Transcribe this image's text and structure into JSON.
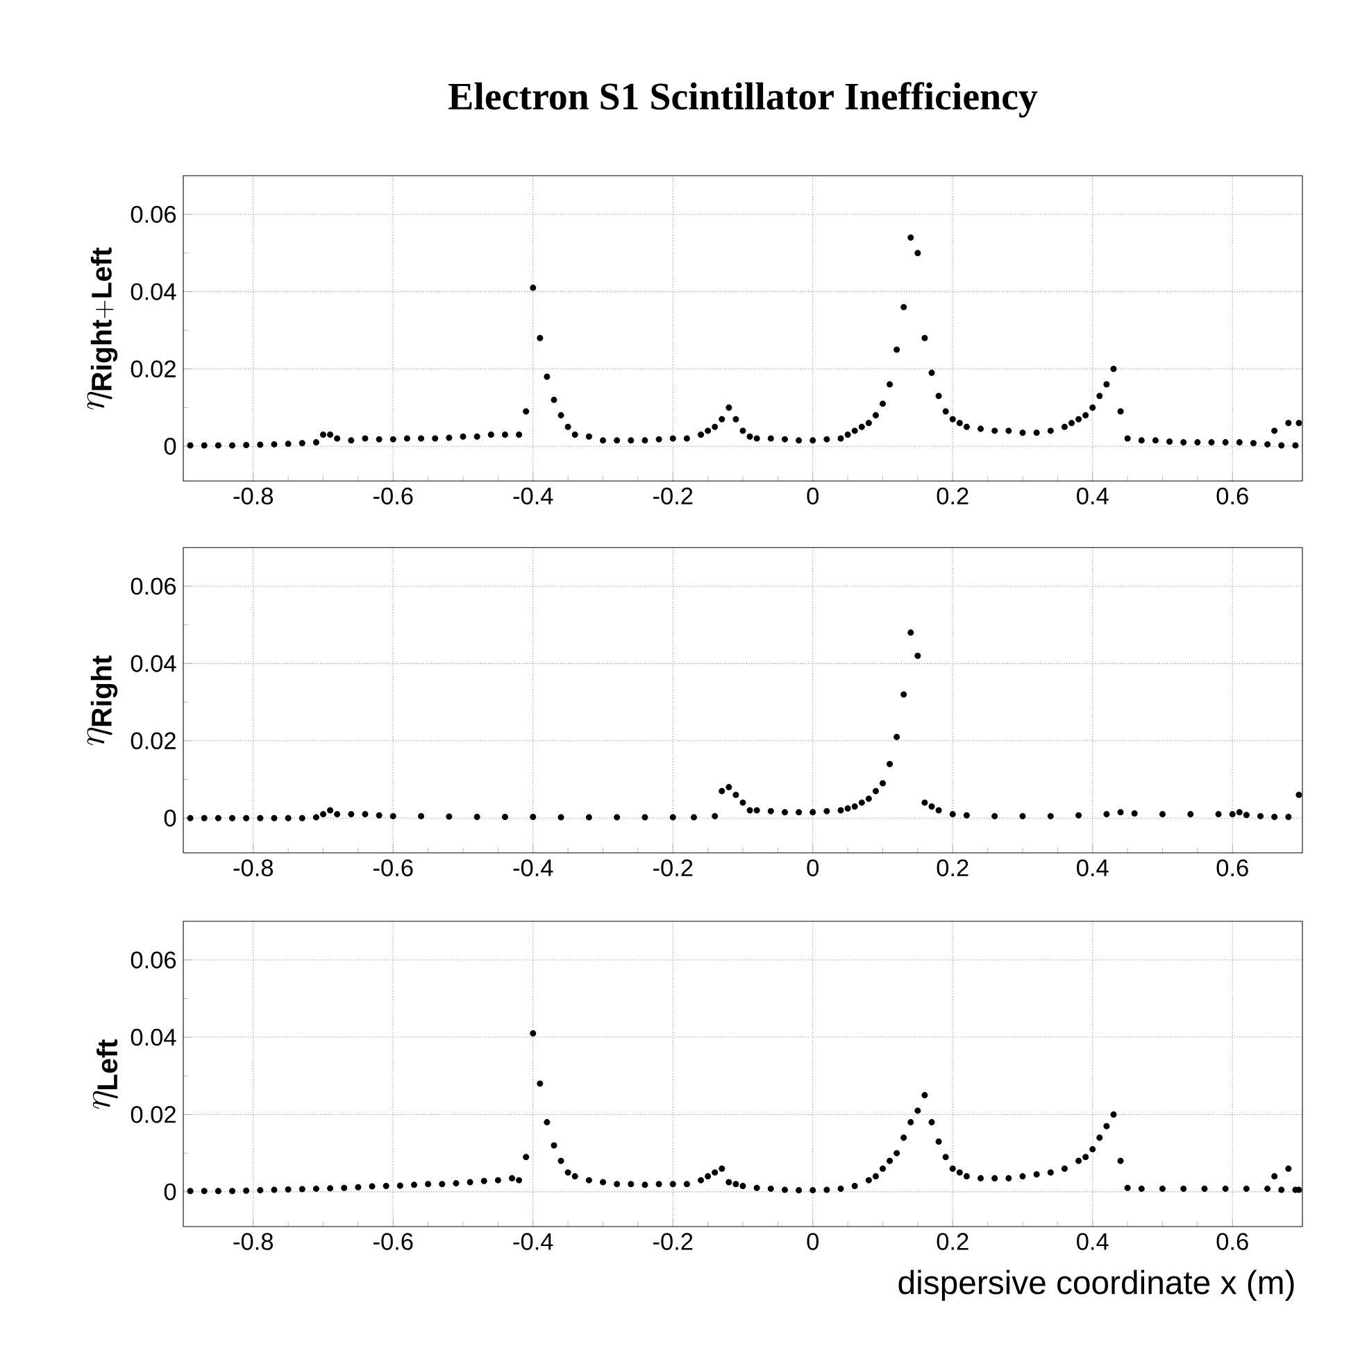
{
  "chart_data": [
    {
      "type": "scatter",
      "title": "Electron S1 Scintillator Inefficiency",
      "ylabel": "\\eta_{\\mathbf{Right+Left}}",
      "color": "#000000",
      "marker": "circle",
      "grid": true,
      "x": [
        -0.89,
        -0.87,
        -0.85,
        -0.83,
        -0.81,
        -0.79,
        -0.77,
        -0.75,
        -0.73,
        -0.71,
        -0.7,
        -0.69,
        -0.68,
        -0.66,
        -0.64,
        -0.62,
        -0.6,
        -0.58,
        -0.56,
        -0.54,
        -0.52,
        -0.5,
        -0.48,
        -0.46,
        -0.44,
        -0.42,
        -0.41,
        -0.4,
        -0.39,
        -0.38,
        -0.37,
        -0.36,
        -0.35,
        -0.34,
        -0.32,
        -0.3,
        -0.28,
        -0.26,
        -0.24,
        -0.22,
        -0.2,
        -0.18,
        -0.16,
        -0.15,
        -0.14,
        -0.13,
        -0.12,
        -0.11,
        -0.1,
        -0.09,
        -0.08,
        -0.06,
        -0.04,
        -0.02,
        0,
        0.02,
        0.04,
        0.05,
        0.06,
        0.07,
        0.08,
        0.09,
        0.1,
        0.11,
        0.12,
        0.13,
        0.14,
        0.15,
        0.16,
        0.17,
        0.18,
        0.19,
        0.2,
        0.21,
        0.22,
        0.24,
        0.26,
        0.28,
        0.3,
        0.32,
        0.34,
        0.36,
        0.37,
        0.38,
        0.39,
        0.4,
        0.41,
        0.42,
        0.43,
        0.44,
        0.45,
        0.47,
        0.49,
        0.51,
        0.53,
        0.55,
        0.57,
        0.59,
        0.61,
        0.63,
        0.65,
        0.66,
        0.67,
        0.68,
        0.69,
        0.695
      ],
      "values": [
        0.0002,
        0.0002,
        0.0002,
        0.0002,
        0.0003,
        0.0004,
        0.0005,
        0.0006,
        0.0008,
        0.001,
        0.003,
        0.003,
        0.002,
        0.0015,
        0.002,
        0.0018,
        0.0018,
        0.002,
        0.002,
        0.002,
        0.0022,
        0.0025,
        0.0025,
        0.003,
        0.003,
        0.003,
        0.009,
        0.041,
        0.028,
        0.018,
        0.012,
        0.008,
        0.005,
        0.003,
        0.0025,
        0.0015,
        0.0015,
        0.0015,
        0.0015,
        0.0018,
        0.002,
        0.002,
        0.003,
        0.004,
        0.005,
        0.007,
        0.01,
        0.007,
        0.004,
        0.0025,
        0.002,
        0.002,
        0.0018,
        0.0015,
        0.0015,
        0.0018,
        0.002,
        0.003,
        0.004,
        0.005,
        0.006,
        0.008,
        0.011,
        0.016,
        0.025,
        0.036,
        0.054,
        0.05,
        0.028,
        0.019,
        0.013,
        0.009,
        0.007,
        0.006,
        0.005,
        0.0045,
        0.004,
        0.004,
        0.0035,
        0.0035,
        0.004,
        0.005,
        0.006,
        0.007,
        0.008,
        0.01,
        0.013,
        0.016,
        0.02,
        0.009,
        0.002,
        0.0015,
        0.0015,
        0.0012,
        0.001,
        0.001,
        0.001,
        0.001,
        0.001,
        0.0008,
        0.0005,
        0.004,
        0.0002,
        0.006,
        0.0002,
        0.006
      ],
      "xlim": [
        -0.9,
        0.7
      ],
      "ylim": [
        -0.009,
        0.07
      ],
      "xticks": [
        -0.8,
        -0.6,
        -0.4,
        -0.2,
        0,
        0.2,
        0.4,
        0.6
      ],
      "yticks": [
        0,
        0.02,
        0.04,
        0.06
      ]
    },
    {
      "type": "scatter",
      "ylabel": "\\eta_{\\mathbf{Right}}",
      "color": "#000000",
      "marker": "circle",
      "grid": true,
      "x": [
        -0.89,
        -0.87,
        -0.85,
        -0.83,
        -0.81,
        -0.79,
        -0.77,
        -0.75,
        -0.73,
        -0.71,
        -0.7,
        -0.69,
        -0.68,
        -0.66,
        -0.64,
        -0.62,
        -0.6,
        -0.56,
        -0.52,
        -0.48,
        -0.44,
        -0.4,
        -0.36,
        -0.32,
        -0.28,
        -0.24,
        -0.2,
        -0.17,
        -0.14,
        -0.13,
        -0.12,
        -0.11,
        -0.1,
        -0.09,
        -0.08,
        -0.06,
        -0.04,
        -0.02,
        0,
        0.02,
        0.04,
        0.05,
        0.06,
        0.07,
        0.08,
        0.09,
        0.1,
        0.11,
        0.12,
        0.13,
        0.14,
        0.15,
        0.16,
        0.17,
        0.18,
        0.2,
        0.22,
        0.26,
        0.3,
        0.34,
        0.38,
        0.42,
        0.44,
        0.46,
        0.5,
        0.54,
        0.58,
        0.6,
        0.61,
        0.62,
        0.64,
        0.66,
        0.68,
        0.695
      ],
      "values": [
        0,
        0,
        0,
        0,
        0,
        0,
        0,
        0,
        0,
        0.0002,
        0.001,
        0.002,
        0.001,
        0.001,
        0.001,
        0.0007,
        0.0005,
        0.0005,
        0.0004,
        0.0003,
        0.0003,
        0.0003,
        0.0002,
        0.0002,
        0.0002,
        0.0002,
        0.0002,
        0.0002,
        0.0005,
        0.007,
        0.008,
        0.006,
        0.004,
        0.002,
        0.002,
        0.0018,
        0.0015,
        0.0015,
        0.0015,
        0.0018,
        0.002,
        0.0025,
        0.003,
        0.004,
        0.005,
        0.007,
        0.009,
        0.014,
        0.021,
        0.032,
        0.048,
        0.042,
        0.004,
        0.003,
        0.002,
        0.001,
        0.0007,
        0.0005,
        0.0005,
        0.0005,
        0.0007,
        0.001,
        0.0015,
        0.0012,
        0.001,
        0.001,
        0.001,
        0.001,
        0.0015,
        0.0008,
        0.0005,
        0.0003,
        0.0003,
        0.006
      ],
      "xlim": [
        -0.9,
        0.7
      ],
      "ylim": [
        -0.009,
        0.07
      ],
      "xticks": [
        -0.8,
        -0.6,
        -0.4,
        -0.2,
        0,
        0.2,
        0.4,
        0.6
      ],
      "yticks": [
        0,
        0.02,
        0.04,
        0.06
      ]
    },
    {
      "type": "scatter",
      "ylabel": "\\eta_{\\mathbf{Left}}",
      "xlabel": "dispersive coordinate x (m)",
      "color": "#000000",
      "marker": "circle",
      "grid": true,
      "x": [
        -0.89,
        -0.87,
        -0.85,
        -0.83,
        -0.81,
        -0.79,
        -0.77,
        -0.75,
        -0.73,
        -0.71,
        -0.69,
        -0.67,
        -0.65,
        -0.63,
        -0.61,
        -0.59,
        -0.57,
        -0.55,
        -0.53,
        -0.51,
        -0.49,
        -0.47,
        -0.45,
        -0.43,
        -0.42,
        -0.41,
        -0.4,
        -0.39,
        -0.38,
        -0.37,
        -0.36,
        -0.35,
        -0.34,
        -0.32,
        -0.3,
        -0.28,
        -0.26,
        -0.24,
        -0.22,
        -0.2,
        -0.18,
        -0.16,
        -0.15,
        -0.14,
        -0.13,
        -0.12,
        -0.11,
        -0.1,
        -0.08,
        -0.06,
        -0.04,
        -0.02,
        0,
        0.02,
        0.04,
        0.06,
        0.08,
        0.09,
        0.1,
        0.11,
        0.12,
        0.13,
        0.14,
        0.15,
        0.16,
        0.17,
        0.18,
        0.19,
        0.2,
        0.21,
        0.22,
        0.24,
        0.26,
        0.28,
        0.3,
        0.32,
        0.34,
        0.36,
        0.38,
        0.39,
        0.4,
        0.41,
        0.42,
        0.43,
        0.44,
        0.45,
        0.47,
        0.5,
        0.53,
        0.56,
        0.59,
        0.62,
        0.65,
        0.66,
        0.67,
        0.68,
        0.69,
        0.695
      ],
      "values": [
        0.0002,
        0.0002,
        0.0002,
        0.0002,
        0.0003,
        0.0004,
        0.0005,
        0.0006,
        0.0007,
        0.0008,
        0.0009,
        0.001,
        0.0012,
        0.0014,
        0.0015,
        0.0016,
        0.0018,
        0.002,
        0.002,
        0.0022,
        0.0025,
        0.0028,
        0.003,
        0.0035,
        0.003,
        0.009,
        0.041,
        0.028,
        0.018,
        0.012,
        0.008,
        0.005,
        0.004,
        0.003,
        0.0025,
        0.002,
        0.002,
        0.0018,
        0.002,
        0.002,
        0.002,
        0.003,
        0.004,
        0.005,
        0.006,
        0.0025,
        0.002,
        0.0015,
        0.001,
        0.0008,
        0.0005,
        0.0004,
        0.0004,
        0.0005,
        0.0008,
        0.0015,
        0.003,
        0.004,
        0.006,
        0.008,
        0.01,
        0.014,
        0.018,
        0.021,
        0.025,
        0.018,
        0.013,
        0.009,
        0.006,
        0.005,
        0.004,
        0.0035,
        0.0035,
        0.0035,
        0.004,
        0.0045,
        0.005,
        0.006,
        0.008,
        0.009,
        0.011,
        0.014,
        0.017,
        0.02,
        0.008,
        0.001,
        0.0008,
        0.0008,
        0.0008,
        0.0008,
        0.0008,
        0.0008,
        0.0008,
        0.004,
        0.0005,
        0.006,
        0.0005,
        0.0005
      ],
      "xlim": [
        -0.9,
        0.7
      ],
      "ylim": [
        -0.009,
        0.07
      ],
      "xticks": [
        -0.8,
        -0.6,
        -0.4,
        -0.2,
        0,
        0.2,
        0.4,
        0.6
      ],
      "yticks": [
        0,
        0.02,
        0.04,
        0.06
      ]
    }
  ]
}
